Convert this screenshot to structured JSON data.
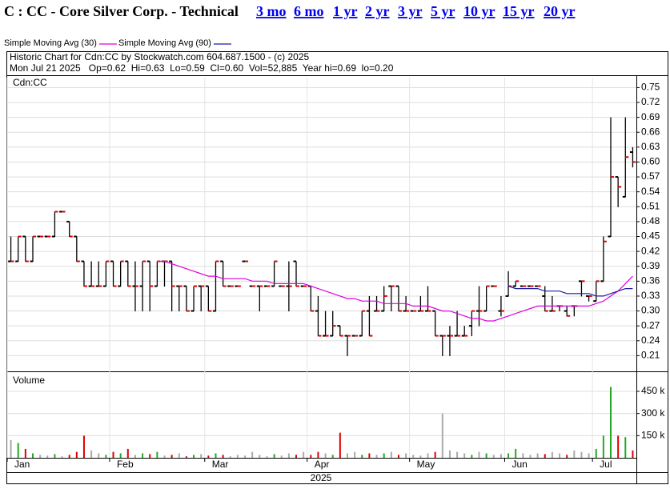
{
  "header": {
    "title": "C : CC - Core Silver Corp. - Technical",
    "links": [
      "3 mo",
      "6 mo",
      "1 yr",
      "2 yr",
      "3 yr",
      "5 yr",
      "10 yr",
      "15 yr",
      "20 yr"
    ]
  },
  "chart_data": [
    {
      "type": "ohlc",
      "title": "Historic Chart for Cdn:CC by Stockwatch.com 604.687.1500 - (c) 2025",
      "subtitle": "Mon Jul 21 2025   Op=0.62  Hi=0.63  Lo=0.59  Cl=0.60  Vol=52,885  Year hi=0.69  lo=0.20",
      "panel_label": "Cdn:CC",
      "bar_color": "#000000",
      "close_color": "#e00000",
      "ylim": [
        0.18,
        0.77
      ],
      "yticks": [
        0.21,
        0.24,
        0.27,
        {
          "value": 0.3,
          "label": "0.30"
        },
        0.33,
        0.36,
        0.39,
        0.42,
        0.45,
        0.48,
        0.51,
        0.54,
        0.57,
        {
          "value": 0.6,
          "label": "0.60"
        },
        0.63,
        0.66,
        0.69,
        0.72,
        0.75
      ],
      "grid": true,
      "ohlc": [
        [
          0.4,
          0.45,
          0.4,
          0.4
        ],
        [
          0.4,
          0.45,
          0.4,
          0.45
        ],
        [
          0.45,
          0.45,
          0.4,
          0.4
        ],
        [
          0.4,
          0.45,
          0.4,
          0.45
        ],
        [
          0.45,
          0.45,
          0.45,
          0.45
        ],
        [
          0.45,
          0.45,
          0.45,
          0.45
        ],
        [
          0.45,
          0.5,
          0.45,
          0.5
        ],
        [
          0.5,
          0.5,
          0.5,
          0.5
        ],
        [
          0.48,
          0.48,
          0.45,
          0.45
        ],
        [
          0.45,
          0.45,
          0.4,
          0.4
        ],
        [
          0.4,
          0.4,
          0.35,
          0.35
        ],
        [
          0.35,
          0.4,
          0.35,
          0.35
        ],
        [
          0.35,
          0.4,
          0.35,
          0.35
        ],
        [
          0.35,
          0.4,
          0.35,
          0.4
        ],
        [
          0.4,
          0.4,
          0.35,
          0.35
        ],
        [
          0.35,
          0.4,
          0.35,
          0.4
        ],
        [
          0.4,
          0.4,
          0.35,
          0.35
        ],
        [
          0.35,
          0.4,
          0.3,
          0.35
        ],
        [
          0.35,
          0.4,
          0.3,
          0.4
        ],
        [
          0.4,
          0.4,
          0.3,
          0.35
        ],
        [
          0.35,
          0.4,
          0.35,
          0.4
        ],
        [
          0.4,
          0.4,
          0.35,
          0.4
        ],
        [
          0.4,
          0.4,
          0.3,
          0.35
        ],
        [
          0.35,
          0.35,
          0.3,
          0.35
        ],
        [
          0.35,
          0.35,
          0.3,
          0.3
        ],
        [
          0.3,
          0.35,
          0.3,
          0.35
        ],
        [
          0.35,
          0.35,
          0.3,
          0.35
        ],
        [
          0.35,
          0.35,
          0.3,
          0.3
        ],
        [
          0.3,
          0.4,
          0.3,
          0.4
        ],
        [
          0.4,
          0.4,
          0.35,
          0.35
        ],
        [
          0.35,
          0.35,
          0.35,
          0.35
        ],
        [
          0.35,
          0.35,
          0.35,
          0.35
        ],
        [
          0.4,
          0.4,
          0.4,
          0.4
        ],
        [
          0.35,
          0.35,
          0.35,
          0.35
        ],
        [
          0.35,
          0.35,
          0.3,
          0.35
        ],
        [
          0.35,
          0.35,
          0.35,
          0.35
        ],
        [
          0.35,
          0.4,
          0.35,
          0.4
        ],
        [
          0.35,
          0.35,
          0.35,
          0.35
        ],
        [
          0.35,
          0.4,
          0.3,
          0.35
        ],
        [
          0.4,
          0.4,
          0.35,
          0.35
        ],
        [
          0.35,
          0.35,
          0.35,
          0.35
        ],
        [
          0.35,
          0.35,
          0.3,
          0.3
        ],
        [
          0.3,
          0.33,
          0.25,
          0.25
        ],
        [
          0.25,
          0.3,
          0.25,
          0.25
        ],
        [
          0.25,
          0.3,
          0.25,
          0.27
        ],
        [
          0.27,
          0.27,
          0.25,
          0.25
        ],
        [
          0.25,
          0.25,
          0.21,
          0.25
        ],
        [
          0.25,
          0.25,
          0.25,
          0.25
        ],
        [
          0.25,
          0.3,
          0.25,
          0.3
        ],
        [
          0.3,
          0.33,
          0.25,
          0.25
        ],
        [
          0.3,
          0.33,
          0.3,
          0.3
        ],
        [
          0.3,
          0.35,
          0.3,
          0.33
        ],
        [
          0.35,
          0.35,
          0.3,
          0.35
        ],
        [
          0.35,
          0.35,
          0.3,
          0.3
        ],
        [
          0.3,
          0.33,
          0.3,
          0.3
        ],
        [
          0.3,
          0.3,
          0.3,
          0.3
        ],
        [
          0.3,
          0.33,
          0.3,
          0.3
        ],
        [
          0.3,
          0.35,
          0.3,
          0.3
        ],
        [
          0.3,
          0.3,
          0.25,
          0.25
        ],
        [
          0.25,
          0.25,
          0.21,
          0.25
        ],
        [
          0.25,
          0.27,
          0.21,
          0.25
        ],
        [
          0.25,
          0.3,
          0.25,
          0.25
        ],
        [
          0.25,
          0.27,
          0.25,
          0.25
        ],
        [
          0.27,
          0.3,
          0.25,
          0.3
        ],
        [
          0.3,
          0.35,
          0.27,
          0.3
        ],
        [
          0.3,
          0.35,
          0.3,
          0.35
        ],
        [
          0.35,
          0.35,
          0.35,
          0.35
        ],
        [
          0.3,
          0.33,
          0.29,
          0.3
        ],
        [
          0.33,
          0.38,
          0.33,
          0.35
        ],
        [
          0.35,
          0.36,
          0.35,
          0.36
        ],
        [
          0.35,
          0.35,
          0.35,
          0.35
        ],
        [
          0.35,
          0.35,
          0.35,
          0.35
        ],
        [
          0.35,
          0.35,
          0.35,
          0.35
        ],
        [
          0.33,
          0.35,
          0.3,
          0.3
        ],
        [
          0.3,
          0.33,
          0.3,
          0.3
        ],
        [
          0.31,
          0.31,
          0.3,
          0.31
        ],
        [
          0.3,
          0.31,
          0.29,
          0.29
        ],
        [
          0.31,
          0.31,
          0.29,
          0.31
        ],
        [
          0.36,
          0.36,
          0.33,
          0.36
        ],
        [
          0.33,
          0.33,
          0.32,
          0.33
        ],
        [
          0.32,
          0.36,
          0.32,
          0.36
        ],
        [
          0.36,
          0.45,
          0.36,
          0.44
        ],
        [
          0.45,
          0.69,
          0.45,
          0.57
        ],
        [
          0.57,
          0.57,
          0.51,
          0.55
        ],
        [
          0.53,
          0.69,
          0.53,
          0.61
        ],
        [
          0.62,
          0.63,
          0.59,
          0.6
        ]
      ],
      "series": [
        {
          "name": "Simple Moving Avg (30)",
          "color": "#dd00dd",
          "values": [
            null,
            null,
            null,
            null,
            null,
            null,
            null,
            null,
            null,
            null,
            null,
            null,
            null,
            null,
            null,
            null,
            null,
            null,
            null,
            null,
            0.4,
            0.4,
            0.395,
            0.39,
            0.385,
            0.38,
            0.375,
            0.37,
            0.37,
            0.365,
            0.365,
            0.365,
            0.365,
            0.36,
            0.36,
            0.36,
            0.355,
            0.355,
            0.355,
            0.355,
            0.355,
            0.35,
            0.345,
            0.34,
            0.335,
            0.33,
            0.325,
            0.325,
            0.32,
            0.32,
            0.32,
            0.315,
            0.315,
            0.315,
            0.315,
            0.31,
            0.31,
            0.31,
            0.305,
            0.3,
            0.3,
            0.295,
            0.29,
            0.285,
            0.285,
            0.28,
            0.28,
            0.285,
            0.29,
            0.295,
            0.3,
            0.305,
            0.31,
            0.31,
            0.31,
            0.31,
            0.31,
            0.31,
            0.31,
            0.31,
            0.315,
            0.32,
            0.33,
            0.34,
            0.355,
            0.37
          ]
        },
        {
          "name": "Simple Moving Avg (90)",
          "color": "#1a1aa6",
          "values": [
            null,
            null,
            null,
            null,
            null,
            null,
            null,
            null,
            null,
            null,
            null,
            null,
            null,
            null,
            null,
            null,
            null,
            null,
            null,
            null,
            null,
            null,
            null,
            null,
            null,
            null,
            null,
            null,
            null,
            null,
            null,
            null,
            null,
            null,
            null,
            null,
            null,
            null,
            null,
            null,
            null,
            null,
            null,
            null,
            null,
            null,
            null,
            null,
            null,
            null,
            null,
            null,
            null,
            null,
            null,
            null,
            null,
            null,
            null,
            null,
            null,
            null,
            null,
            null,
            null,
            null,
            null,
            null,
            0.35,
            0.345,
            0.345,
            0.345,
            0.345,
            0.34,
            0.34,
            0.34,
            0.335,
            0.335,
            0.335,
            0.335,
            0.33,
            0.33,
            0.335,
            0.34,
            0.345,
            0.345
          ]
        }
      ]
    },
    {
      "type": "bar",
      "panel_label": "Volume",
      "xlabel": "2025",
      "up_color": "#22aa22",
      "down_color": "#e00000",
      "flat_color": "#aaaaaa",
      "categories": [
        "Jan",
        null,
        null,
        null,
        null,
        null,
        null,
        null,
        null,
        null,
        null,
        null,
        null,
        null,
        "Feb",
        null,
        null,
        null,
        null,
        null,
        null,
        null,
        null,
        null,
        null,
        null,
        null,
        "Mar",
        null,
        null,
        null,
        null,
        null,
        null,
        null,
        null,
        null,
        null,
        null,
        null,
        null,
        "Apr",
        null,
        null,
        null,
        null,
        null,
        null,
        null,
        null,
        null,
        null,
        null,
        null,
        null,
        "May",
        null,
        null,
        null,
        null,
        null,
        null,
        null,
        null,
        null,
        null,
        null,
        null,
        "Jun",
        null,
        null,
        null,
        null,
        null,
        null,
        null,
        null,
        null,
        null,
        null,
        "Jul",
        null,
        null,
        null,
        null,
        null
      ],
      "values": [
        120000,
        100000,
        60000,
        30000,
        20000,
        15000,
        25000,
        10000,
        20000,
        40000,
        150000,
        50000,
        30000,
        20000,
        40000,
        30000,
        60000,
        20000,
        30000,
        25000,
        40000,
        15000,
        20000,
        30000,
        10000,
        20000,
        25000,
        15000,
        30000,
        20000,
        10000,
        20000,
        15000,
        40000,
        20000,
        10000,
        25000,
        15000,
        30000,
        20000,
        40000,
        20000,
        40000,
        30000,
        20000,
        170000,
        30000,
        40000,
        20000,
        30000,
        20000,
        30000,
        40000,
        20000,
        30000,
        20000,
        15000,
        30000,
        40000,
        300000,
        50000,
        40000,
        30000,
        20000,
        40000,
        30000,
        20000,
        25000,
        30000,
        60000,
        30000,
        20000,
        30000,
        25000,
        40000,
        30000,
        20000,
        50000,
        40000,
        30000,
        60000,
        150000,
        480000,
        150000,
        140000,
        50000
      ],
      "ylim": [
        0,
        580000
      ],
      "yticks": [
        {
          "value": 150000,
          "label": "150 k"
        },
        {
          "value": 300000,
          "label": "300 k"
        },
        {
          "value": 450000,
          "label": "450 k"
        }
      ],
      "grid": true
    }
  ]
}
